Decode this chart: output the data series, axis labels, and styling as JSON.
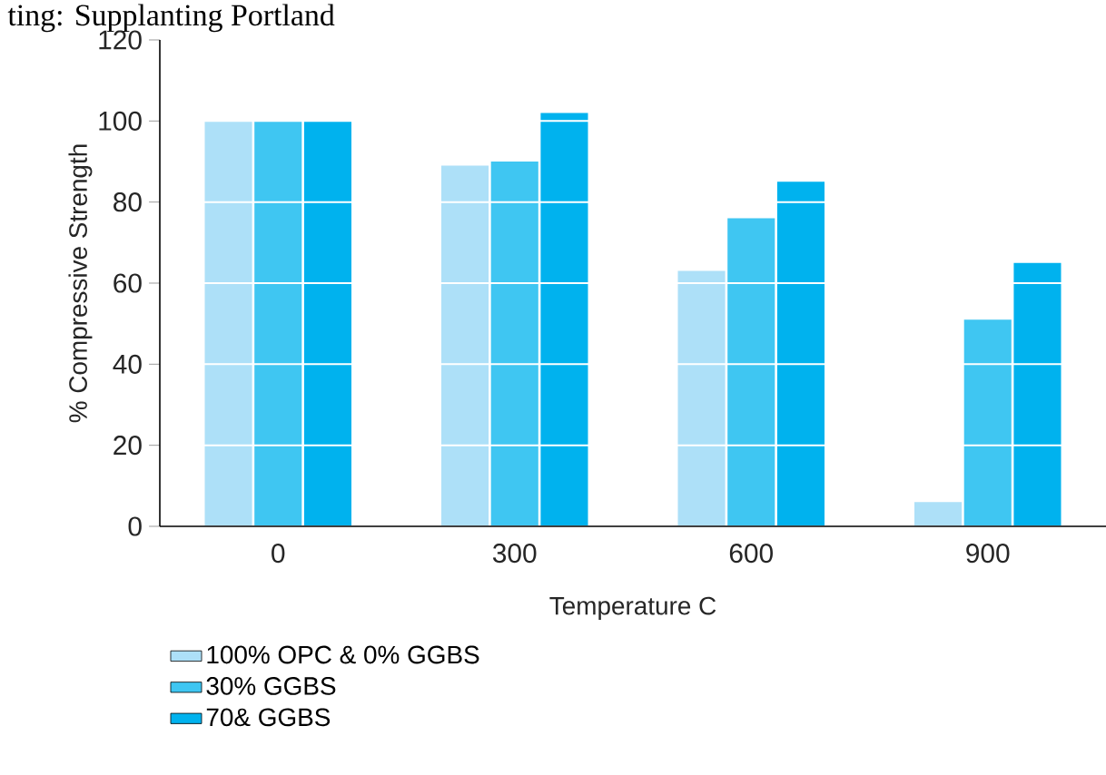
{
  "chart_data": {
    "type": "bar",
    "annotations": [
      "ting: Supplanting Portland"
    ],
    "xlabel": "Temperature C",
    "ylabel": "% Compressive Strength",
    "categories": [
      "0",
      "300",
      "600",
      "900"
    ],
    "series": [
      {
        "name": "100% OPC & 0% GGBS",
        "color": "#ade0f8",
        "values": [
          100,
          89,
          63,
          6
        ]
      },
      {
        "name": "30% GGBS",
        "color": "#3fc6f2",
        "values": [
          100,
          90,
          76,
          51
        ]
      },
      {
        "name": "70& GGBS",
        "color": "#00b2ee",
        "values": [
          100,
          102,
          85,
          65
        ]
      }
    ],
    "ylim": [
      0,
      120
    ],
    "yticks": [
      0,
      20,
      40,
      60,
      80,
      100,
      120
    ],
    "grid": "y",
    "legend": "bottom"
  }
}
